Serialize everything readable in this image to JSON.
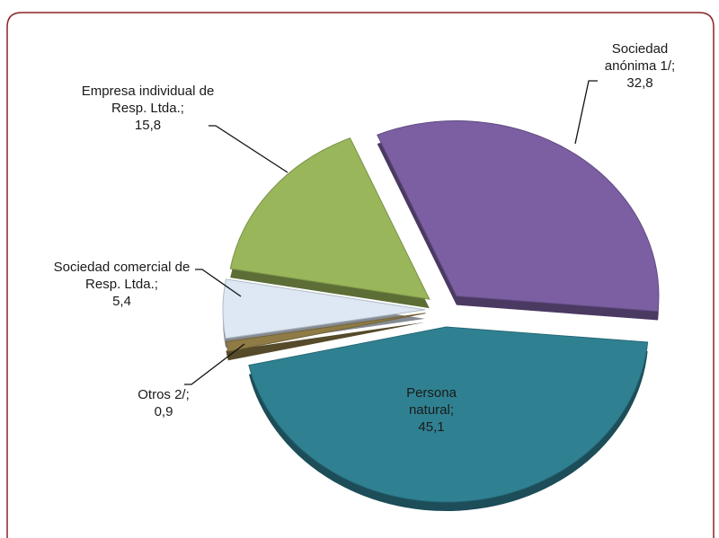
{
  "chart_data": {
    "type": "pie",
    "categories": [
      "Persona natural;",
      "Otros 2/;",
      "Sociedad comercial de Resp. Ltda.;",
      "Empresa individual de Resp. Ltda.;",
      "Sociedad anónima 1/;"
    ],
    "values": [
      45.1,
      0.9,
      5.4,
      15.8,
      32.8
    ],
    "value_labels": [
      "45,1",
      "0,9",
      "5,4",
      "15,8",
      "32,8"
    ],
    "colors": [
      "#2f8192",
      "#8e7b45",
      "#dde8f4",
      "#99b65a",
      "#7b5fa2"
    ]
  }
}
